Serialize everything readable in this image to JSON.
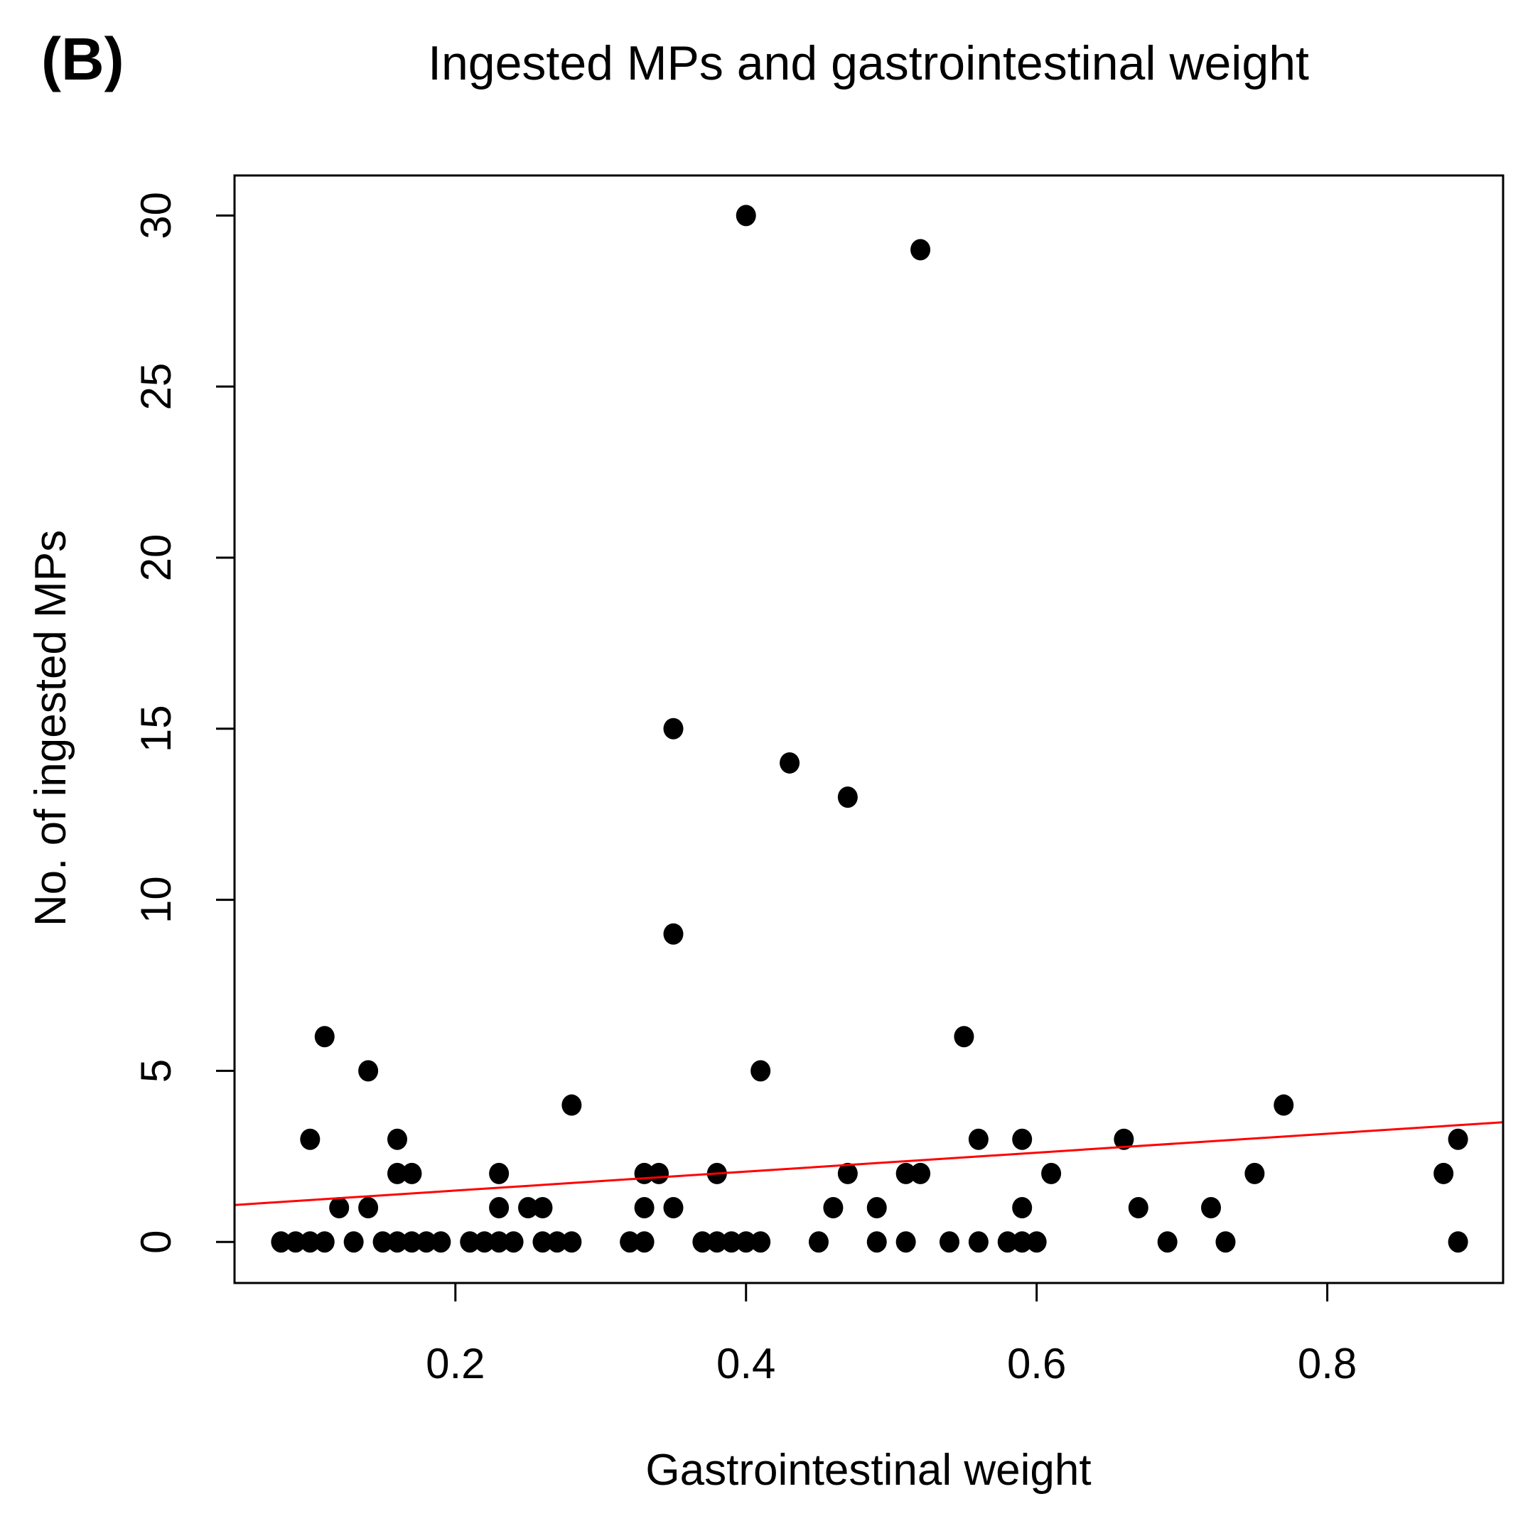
{
  "chart_data": {
    "type": "scatter",
    "panel_label": "(B)",
    "title": "Ingested MPs and gastrointestinal weight",
    "xlabel": "Gastrointestinal weight",
    "ylabel": "No. of ingested MPs",
    "xlim": [
      0.048,
      0.921
    ],
    "ylim": [
      -1.2,
      31.17
    ],
    "xticks": [
      {
        "value": 0.2,
        "label": "0.2"
      },
      {
        "value": 0.4,
        "label": "0.4"
      },
      {
        "value": 0.6,
        "label": "0.6"
      },
      {
        "value": 0.8,
        "label": "0.8"
      }
    ],
    "yticks": [
      {
        "value": 0,
        "label": "0"
      },
      {
        "value": 5,
        "label": "5"
      },
      {
        "value": 10,
        "label": "10"
      },
      {
        "value": 15,
        "label": "15"
      },
      {
        "value": 20,
        "label": "20"
      },
      {
        "value": 25,
        "label": "25"
      },
      {
        "value": 30,
        "label": "30"
      }
    ],
    "grid": false,
    "point_color": "#000000",
    "points": [
      [
        0.08,
        0
      ],
      [
        0.09,
        0
      ],
      [
        0.1,
        0
      ],
      [
        0.11,
        0
      ],
      [
        0.13,
        0
      ],
      [
        0.15,
        0
      ],
      [
        0.16,
        0
      ],
      [
        0.17,
        0
      ],
      [
        0.18,
        0
      ],
      [
        0.19,
        0
      ],
      [
        0.21,
        0
      ],
      [
        0.22,
        0
      ],
      [
        0.23,
        0
      ],
      [
        0.24,
        0
      ],
      [
        0.26,
        0
      ],
      [
        0.27,
        0
      ],
      [
        0.28,
        0
      ],
      [
        0.32,
        0
      ],
      [
        0.33,
        0
      ],
      [
        0.37,
        0
      ],
      [
        0.38,
        0
      ],
      [
        0.39,
        0
      ],
      [
        0.4,
        0
      ],
      [
        0.41,
        0
      ],
      [
        0.45,
        0
      ],
      [
        0.49,
        0
      ],
      [
        0.51,
        0
      ],
      [
        0.54,
        0
      ],
      [
        0.56,
        0
      ],
      [
        0.58,
        0
      ],
      [
        0.59,
        0
      ],
      [
        0.6,
        0
      ],
      [
        0.69,
        0
      ],
      [
        0.73,
        0
      ],
      [
        0.89,
        0
      ],
      [
        0.12,
        1
      ],
      [
        0.14,
        1
      ],
      [
        0.23,
        1
      ],
      [
        0.25,
        1
      ],
      [
        0.26,
        1
      ],
      [
        0.33,
        1
      ],
      [
        0.35,
        1
      ],
      [
        0.46,
        1
      ],
      [
        0.49,
        1
      ],
      [
        0.59,
        1
      ],
      [
        0.67,
        1
      ],
      [
        0.72,
        1
      ],
      [
        0.16,
        2
      ],
      [
        0.17,
        2
      ],
      [
        0.23,
        2
      ],
      [
        0.33,
        2
      ],
      [
        0.34,
        2
      ],
      [
        0.38,
        2
      ],
      [
        0.47,
        2
      ],
      [
        0.51,
        2
      ],
      [
        0.52,
        2
      ],
      [
        0.61,
        2
      ],
      [
        0.75,
        2
      ],
      [
        0.88,
        2
      ],
      [
        0.1,
        3
      ],
      [
        0.16,
        3
      ],
      [
        0.56,
        3
      ],
      [
        0.59,
        3
      ],
      [
        0.66,
        3
      ],
      [
        0.89,
        3
      ],
      [
        0.28,
        4
      ],
      [
        0.77,
        4
      ],
      [
        0.14,
        5
      ],
      [
        0.41,
        5
      ],
      [
        0.11,
        6
      ],
      [
        0.55,
        6
      ],
      [
        0.35,
        9
      ],
      [
        0.47,
        13
      ],
      [
        0.43,
        14
      ],
      [
        0.35,
        15
      ],
      [
        0.52,
        29
      ],
      [
        0.4,
        30
      ]
    ],
    "regression_line": {
      "intercept": 0.947,
      "slope": 2.77,
      "color": "#ff0000"
    }
  }
}
